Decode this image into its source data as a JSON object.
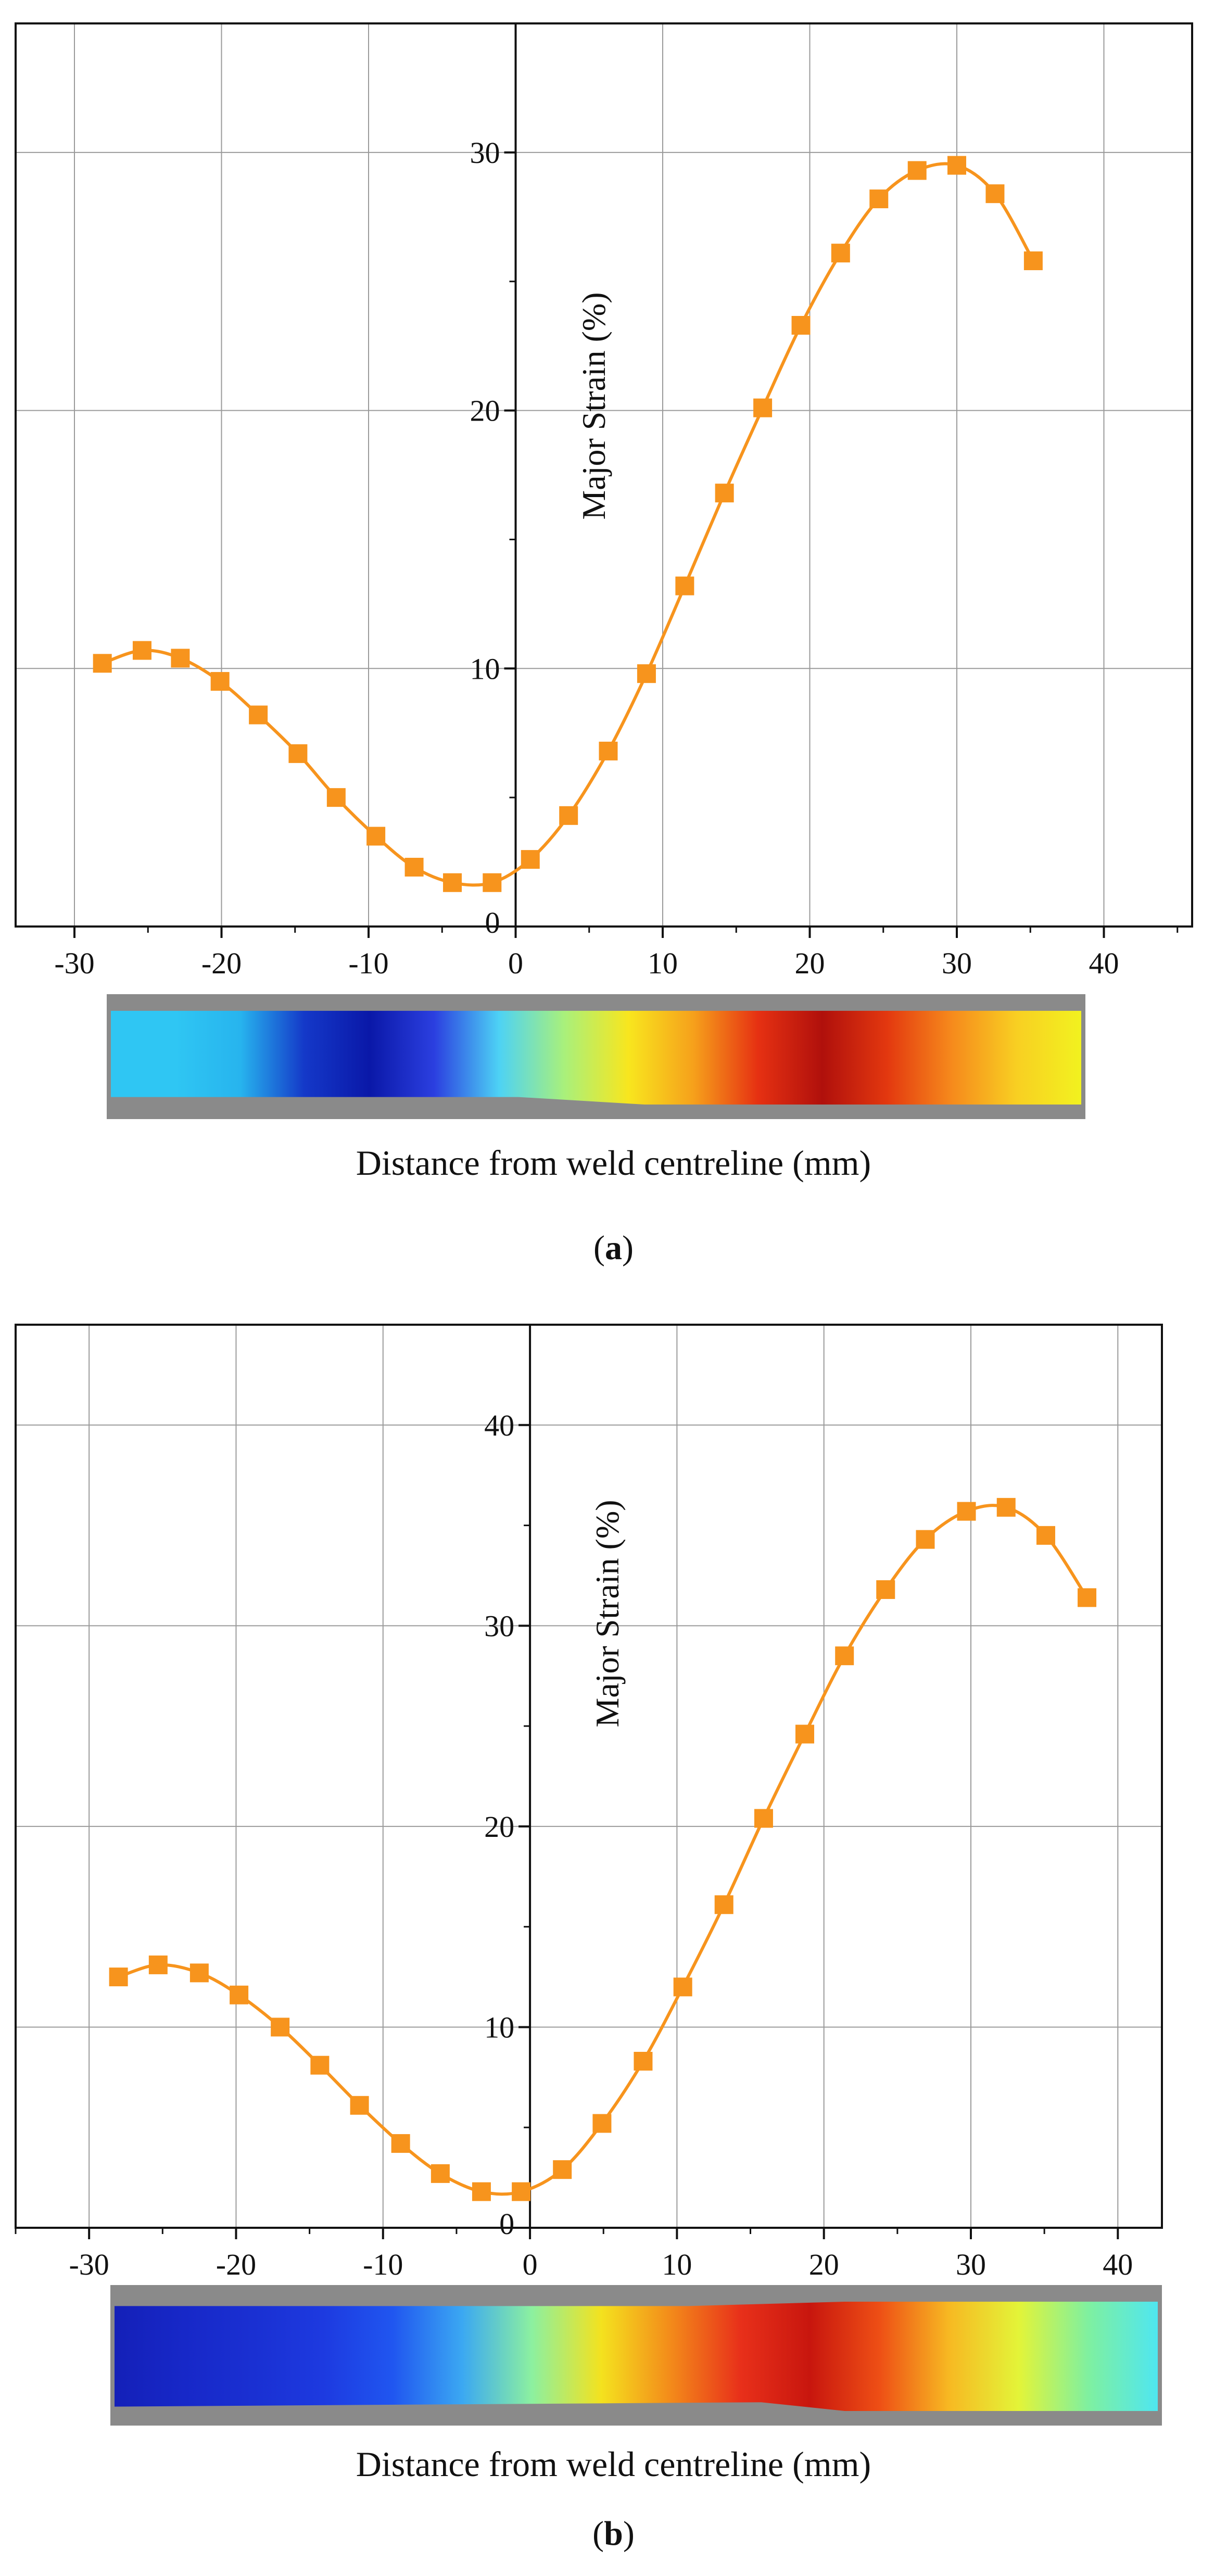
{
  "chart_data": [
    {
      "panel": "a",
      "type": "line",
      "xlabel": "Distance from weld centreline (mm)",
      "ylabel": "Major Strain (%)",
      "xlim": [
        -34,
        46
      ],
      "ylim": [
        0,
        35
      ],
      "xticks": [
        -30,
        -20,
        -10,
        0,
        10,
        20,
        30,
        40
      ],
      "yticks": [
        10,
        20,
        30
      ],
      "y_zero_label": "0",
      "grid": true,
      "series": [
        {
          "name": "Major Strain",
          "color": "#f7941d",
          "marker": "square",
          "x": [
            -28.1,
            -25.4,
            -22.8,
            -20.1,
            -17.5,
            -14.8,
            -12.2,
            -9.5,
            -6.9,
            -4.3,
            -1.6,
            1.0,
            3.6,
            6.3,
            8.9,
            11.5,
            14.2,
            16.8,
            19.4,
            22.1,
            24.7,
            27.3,
            30.0,
            32.6,
            35.2
          ],
          "y": [
            10.2,
            10.7,
            10.4,
            9.5,
            8.2,
            6.7,
            5.0,
            3.5,
            2.3,
            1.7,
            1.7,
            2.6,
            4.3,
            6.8,
            9.8,
            13.2,
            16.8,
            20.1,
            23.3,
            26.1,
            28.2,
            29.3,
            29.5,
            28.4,
            25.8
          ]
        }
      ]
    },
    {
      "panel": "b",
      "type": "line",
      "xlabel": "Distance from weld centreline (mm)",
      "ylabel": "Major Strain (%)",
      "xlim": [
        -35,
        43
      ],
      "ylim": [
        0,
        45
      ],
      "xticks": [
        -30,
        -20,
        -10,
        0,
        10,
        20,
        30,
        40
      ],
      "yticks": [
        10,
        20,
        30,
        40
      ],
      "y_zero_label": "0",
      "grid": true,
      "series": [
        {
          "name": "Major Strain",
          "color": "#f7941d",
          "marker": "square",
          "x": [
            -28.0,
            -25.3,
            -22.5,
            -19.8,
            -17.0,
            -14.3,
            -11.6,
            -8.8,
            -6.1,
            -3.3,
            -0.6,
            2.2,
            4.9,
            7.7,
            10.4,
            13.2,
            15.9,
            18.7,
            21.4,
            24.2,
            26.9,
            29.7,
            32.4,
            35.1,
            37.9
          ],
          "y": [
            12.5,
            13.1,
            12.7,
            11.6,
            10.0,
            8.1,
            6.1,
            4.2,
            2.7,
            1.8,
            1.8,
            2.9,
            5.2,
            8.3,
            12.0,
            16.1,
            20.4,
            24.6,
            28.5,
            31.8,
            34.3,
            35.7,
            35.9,
            34.5,
            31.4
          ]
        }
      ]
    }
  ],
  "panels": {
    "a": {
      "caption_open": "(",
      "caption_letter": "a",
      "caption_close": ")",
      "strip_gradient": [
        "#2fc6f3",
        "#2fc6f3",
        "#27b4ee",
        "#1438c8",
        "#0a18a8",
        "#2b3fe0",
        "#4dd2f5",
        "#a8f07c",
        "#f8e61e",
        "#f6a11b",
        "#e63112",
        "#b0100c",
        "#e3380f",
        "#f68a1c",
        "#f8cf22",
        "#f2f21f"
      ]
    },
    "b": {
      "caption_open": "(",
      "caption_letter": "b",
      "caption_close": ")",
      "strip_gradient": [
        "#1420b8",
        "#1728c8",
        "#1a30d2",
        "#1d3ae0",
        "#2056f0",
        "#3ba8f2",
        "#8cf0a0",
        "#f4e21e",
        "#f38a1a",
        "#e8301a",
        "#c8160e",
        "#ee4f15",
        "#f7b922",
        "#e3f438",
        "#7ff0a0",
        "#4fe6f0"
      ]
    }
  }
}
